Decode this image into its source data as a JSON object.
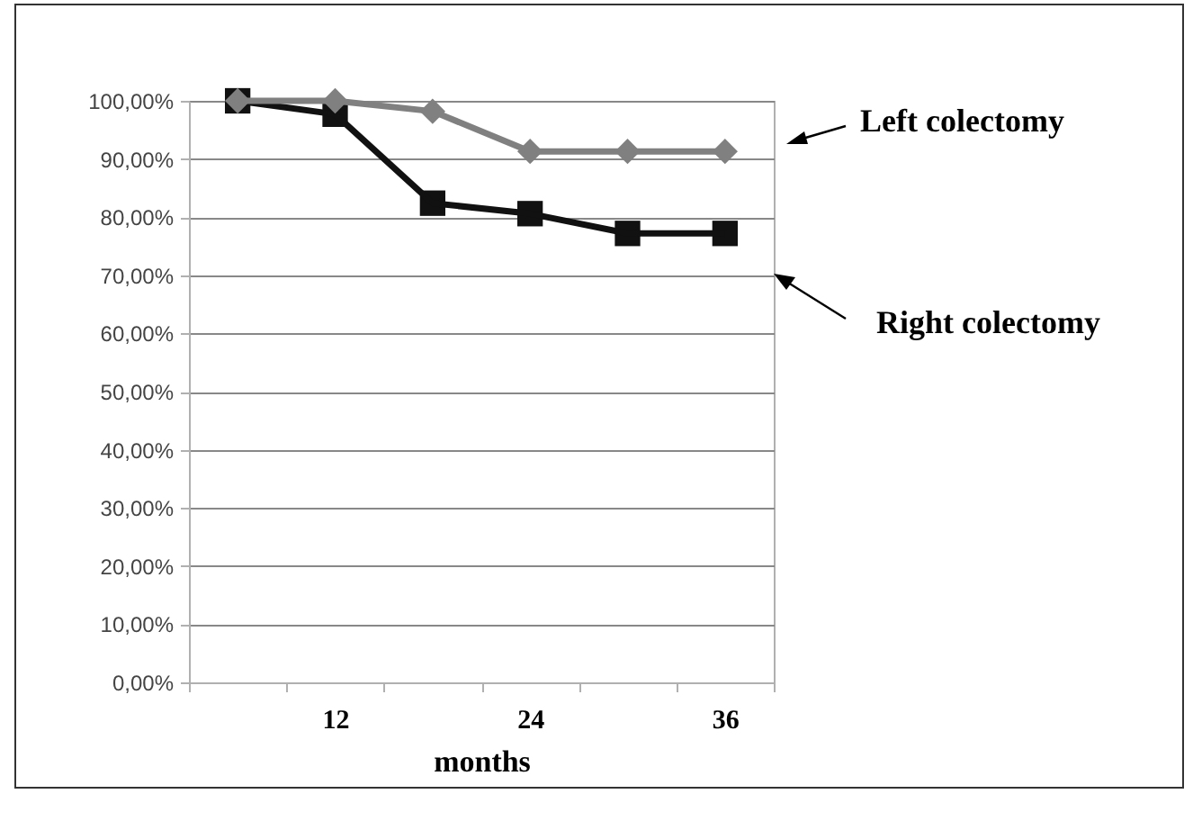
{
  "chart_data": {
    "type": "line",
    "xlabel": "months",
    "categories": [
      null,
      "12",
      null,
      "24",
      null,
      "36"
    ],
    "series": [
      {
        "name": "Left colectomy",
        "color": "#808080",
        "marker": "diamond",
        "values": [
          100,
          100,
          98.2,
          91.3,
          91.3,
          91.3
        ]
      },
      {
        "name": "Right colectomy",
        "color": "#111111",
        "marker": "square",
        "values": [
          100,
          97.7,
          82.4,
          80.6,
          77.2,
          77.2
        ]
      }
    ],
    "ylim": [
      0,
      100
    ],
    "yticks": [
      {
        "value": 0,
        "label": "0,00%"
      },
      {
        "value": 10,
        "label": "10,00%"
      },
      {
        "value": 20,
        "label": "20,00%"
      },
      {
        "value": 30,
        "label": "30,00%"
      },
      {
        "value": 40,
        "label": "40,00%"
      },
      {
        "value": 50,
        "label": "50,00%"
      },
      {
        "value": 60,
        "label": "60,00%"
      },
      {
        "value": 70,
        "label": "70,00%"
      },
      {
        "value": 80,
        "label": "80,00%"
      },
      {
        "value": 90,
        "label": "90,00%"
      },
      {
        "value": 100,
        "label": "100,00%"
      }
    ],
    "grid": "y",
    "legend": false
  }
}
